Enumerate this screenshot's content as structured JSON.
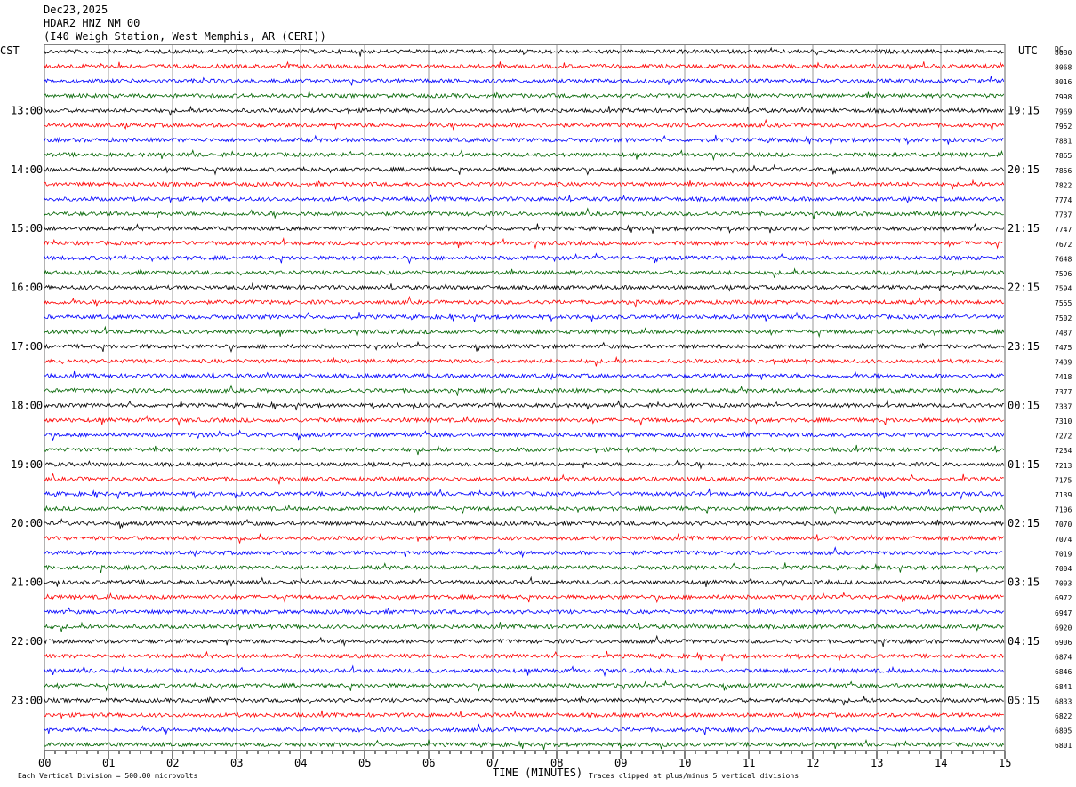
{
  "header": {
    "date": "Dec23,2025",
    "station": "HDAR2 HNZ NM 00",
    "location": "(I40 Weigh Station, West Memphis, AR (CERI))"
  },
  "axis": {
    "left_zone": "CST",
    "right_zone": "UTC",
    "dc_label": "DC",
    "xlabel": "TIME (MINUTES)"
  },
  "footer": {
    "scale_note": "Each Vertical Division =  500.00 microvolts",
    "clip_note": "Traces clipped at plus/minus 5 vertical divisions"
  },
  "chart_data": {
    "type": "line",
    "title": "HDAR2 HNZ NM 00",
    "xlabel": "TIME (MINUTES)",
    "xlim": [
      0,
      15
    ],
    "x_ticks": [
      "00",
      "01",
      "02",
      "03",
      "04",
      "05",
      "06",
      "07",
      "08",
      "09",
      "10",
      "11",
      "12",
      "13",
      "14",
      "15"
    ],
    "grid": true,
    "trace_colors": [
      "#000000",
      "#ff0000",
      "#0000ff",
      "#006400"
    ],
    "cst_hour_labels": [
      "13:00",
      "14:00",
      "15:00",
      "16:00",
      "17:00",
      "18:00",
      "19:00",
      "20:00",
      "21:00",
      "22:00",
      "23:00"
    ],
    "utc_hour_labels": [
      "19:15",
      "20:15",
      "21:15",
      "22:15",
      "23:15",
      "00:15",
      "01:15",
      "02:15",
      "03:15",
      "04:15",
      "05:15"
    ],
    "first_labeled_trace_index": 4,
    "dc_offsets": [
      8080,
      8068,
      8016,
      7998,
      7969,
      7952,
      7881,
      7865,
      7856,
      7822,
      7774,
      7737,
      7747,
      7672,
      7648,
      7596,
      7594,
      7555,
      7502,
      7487,
      7475,
      7439,
      7418,
      7377,
      7337,
      7310,
      7272,
      7234,
      7213,
      7175,
      7139,
      7106,
      7070,
      7074,
      7019,
      7004,
      7003,
      6972,
      6947,
      6920,
      6906,
      6874,
      6846,
      6841,
      6833,
      6822,
      6805,
      6801
    ]
  }
}
